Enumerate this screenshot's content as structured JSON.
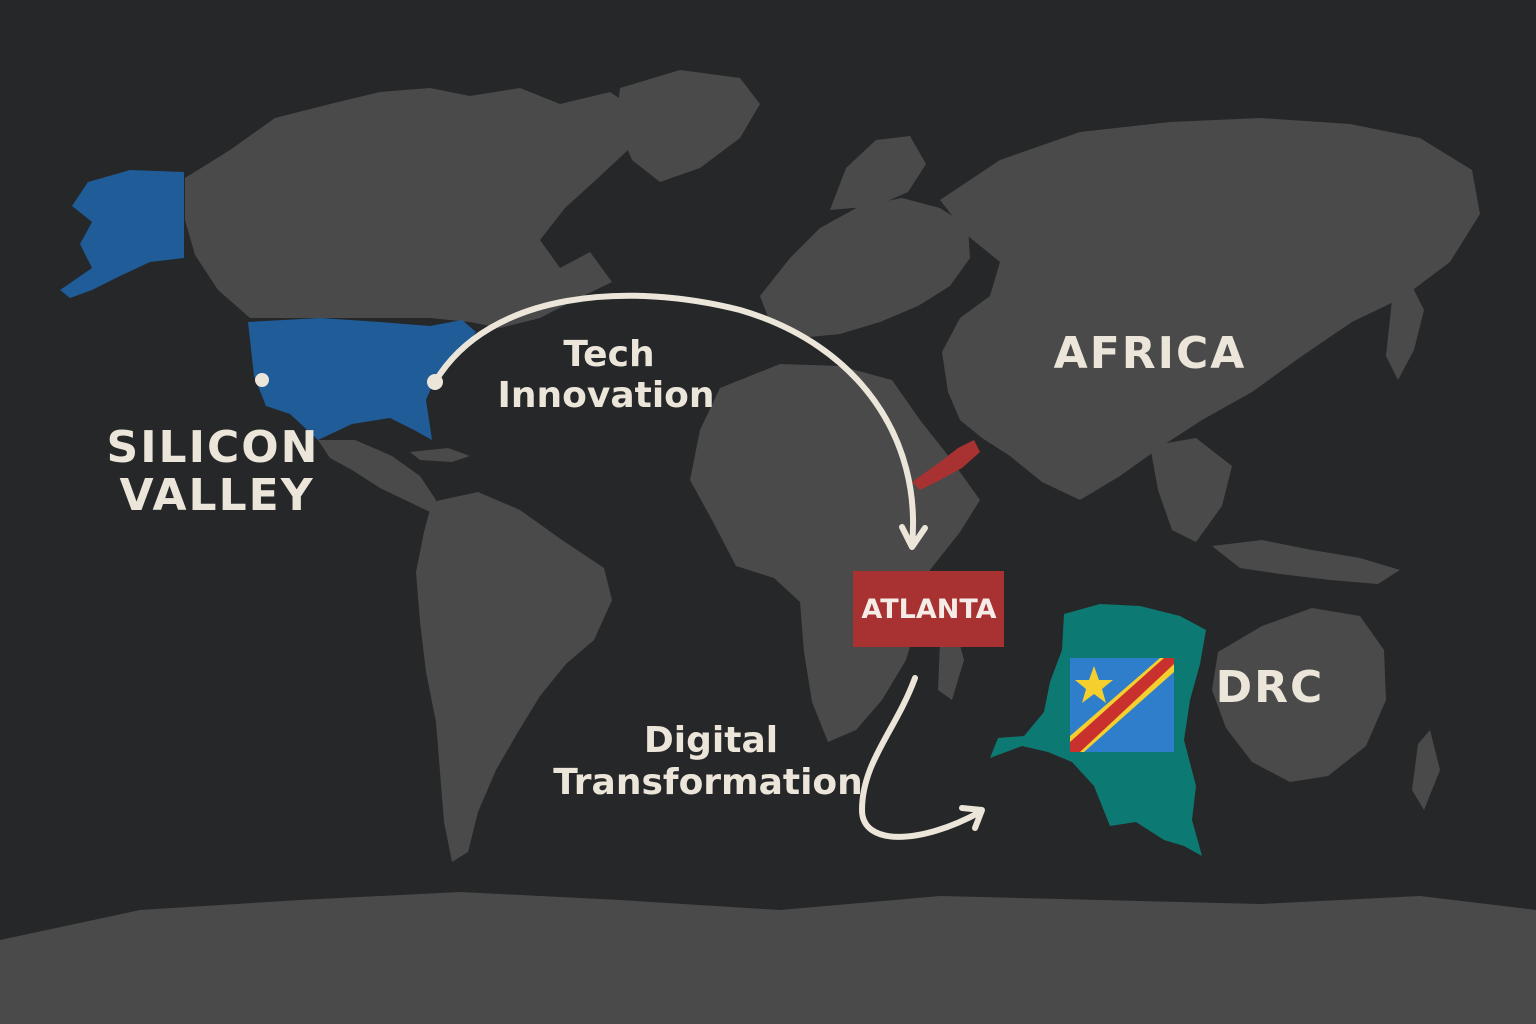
{
  "labels": {
    "origin_line1": "SILICON",
    "origin_line2": "VALLEY",
    "flow1_line1": "Tech",
    "flow1_line2": "Innovation",
    "region": "AFRICA",
    "hub": "ATLANTA",
    "flow2_line1": "Digital",
    "flow2_line2": "Transformation",
    "destination": "DRC"
  },
  "colors": {
    "background": "#262728",
    "land": "#4a4a4a",
    "usa_highlight": "#1f5c98",
    "drc_highlight": "#0c7a73",
    "hub_box": "#a83232",
    "arrow": "#ece6da",
    "flag_blue": "#2f7ecb",
    "flag_red": "#c8312d",
    "flag_yellow": "#f4cf2e"
  }
}
